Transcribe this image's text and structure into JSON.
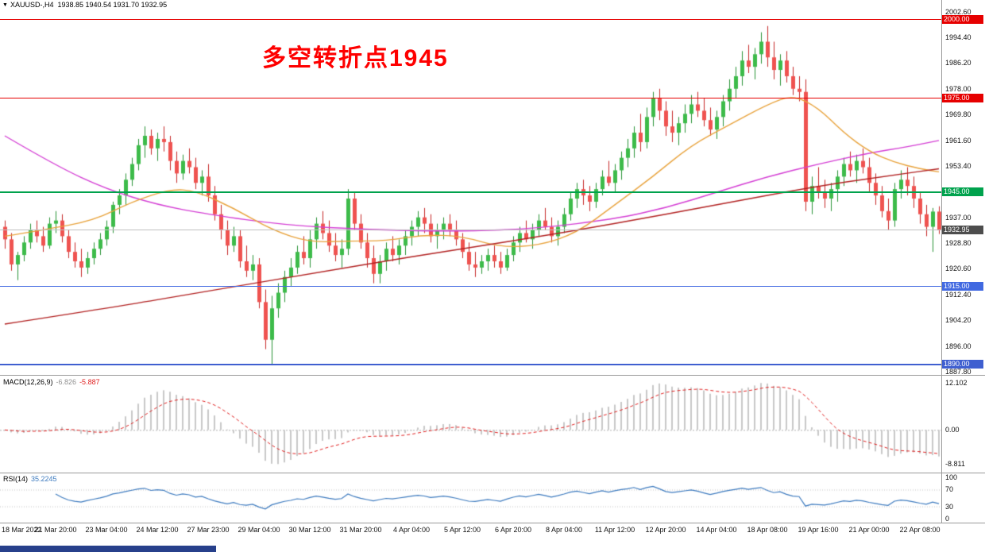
{
  "header": {
    "dropdown_icon": "▼",
    "symbol_text": "XAUUSD-,H4",
    "ohlc_text": "1938.85 1940.54 1931.70 1932.95"
  },
  "chart_data": {
    "type": "candlestick",
    "symbol": "XAUUSD-",
    "timeframe": "H4",
    "title": "XAUUSD- H4 chart with horizontal levels, MACD and RSI",
    "annotation": {
      "text": "多空转折点1945",
      "color": "#fe0000"
    },
    "price_range": [
      1887.8,
      2002.6
    ],
    "price_axis": {
      "ticks": [
        "2002.60",
        "1994.40",
        "1986.20",
        "1978.00",
        "1969.80",
        "1961.60",
        "1953.40",
        "1945.20",
        "1937.00",
        "1928.80",
        "1920.60",
        "1912.40",
        "1904.20",
        "1896.00",
        "1887.80"
      ]
    },
    "badges": [
      {
        "text": "2000.00",
        "bg": "#e60000"
      },
      {
        "text": "1975.00",
        "bg": "#e60000"
      },
      {
        "text": "1945.00",
        "bg": "#00a24d"
      },
      {
        "text": "1932.95",
        "bg": "#4d4d4d"
      },
      {
        "text": "1915.00",
        "bg": "#4169e1"
      },
      {
        "text": "1890.00",
        "bg": "#3f5fd0"
      }
    ],
    "hlines": [
      {
        "value": 2000,
        "color": "#e60000",
        "w": 1
      },
      {
        "value": 1975,
        "color": "#e60000",
        "w": 1
      },
      {
        "value": 1945,
        "color": "#00a24d",
        "w": 2
      },
      {
        "value": 1915,
        "color": "#4169e1",
        "w": 1
      },
      {
        "value": 1890,
        "color": "#3f5fd0",
        "w": 2
      },
      {
        "value": 1932.95,
        "color": "#bfbfbf",
        "w": 1
      }
    ],
    "candle_colors": {
      "up_fill": "#3dbb4a",
      "up_stroke": "#2a9337",
      "down_fill": "#ef5350",
      "down_stroke": "#c62828"
    },
    "candles": [
      [
        1934,
        1936,
        1927,
        1930
      ],
      [
        1930,
        1932,
        1920,
        1922
      ],
      [
        1922,
        1926,
        1917,
        1925
      ],
      [
        1925,
        1931,
        1923,
        1929
      ],
      [
        1929,
        1935,
        1927,
        1933
      ],
      [
        1933,
        1936,
        1929,
        1931
      ],
      [
        1931,
        1934,
        1926,
        1928
      ],
      [
        1928,
        1937,
        1927,
        1935
      ],
      [
        1935,
        1939,
        1932,
        1936
      ],
      [
        1936,
        1938,
        1929,
        1931
      ],
      [
        1931,
        1933,
        1924,
        1926
      ],
      [
        1926,
        1929,
        1921,
        1923
      ],
      [
        1923,
        1927,
        1918,
        1921
      ],
      [
        1921,
        1926,
        1919,
        1924
      ],
      [
        1924,
        1929,
        1922,
        1927
      ],
      [
        1927,
        1932,
        1925,
        1930
      ],
      [
        1930,
        1936,
        1928,
        1934
      ],
      [
        1934,
        1942,
        1932,
        1941
      ],
      [
        1941,
        1946,
        1938,
        1944
      ],
      [
        1944,
        1951,
        1941,
        1949
      ],
      [
        1949,
        1956,
        1947,
        1954
      ],
      [
        1954,
        1962,
        1952,
        1960
      ],
      [
        1960,
        1966,
        1956,
        1963
      ],
      [
        1963,
        1965,
        1957,
        1959
      ],
      [
        1959,
        1964,
        1955,
        1962
      ],
      [
        1962,
        1966,
        1958,
        1961
      ],
      [
        1961,
        1963,
        1952,
        1955
      ],
      [
        1955,
        1958,
        1948,
        1951
      ],
      [
        1951,
        1957,
        1949,
        1955
      ],
      [
        1955,
        1959,
        1951,
        1953
      ],
      [
        1953,
        1956,
        1946,
        1948
      ],
      [
        1948,
        1952,
        1944,
        1950
      ],
      [
        1950,
        1954,
        1942,
        1944
      ],
      [
        1944,
        1947,
        1936,
        1938
      ],
      [
        1938,
        1941,
        1930,
        1933
      ],
      [
        1933,
        1936,
        1925,
        1928
      ],
      [
        1928,
        1934,
        1926,
        1931
      ],
      [
        1931,
        1933,
        1921,
        1923
      ],
      [
        1923,
        1928,
        1918,
        1920
      ],
      [
        1920,
        1925,
        1917,
        1922
      ],
      [
        1922,
        1924,
        1908,
        1910
      ],
      [
        1910,
        1914,
        1895,
        1898
      ],
      [
        1898,
        1912,
        1890,
        1908
      ],
      [
        1908,
        1916,
        1905,
        1913
      ],
      [
        1913,
        1920,
        1910,
        1918
      ],
      [
        1918,
        1924,
        1915,
        1921
      ],
      [
        1921,
        1928,
        1919,
        1926
      ],
      [
        1926,
        1931,
        1922,
        1924
      ],
      [
        1924,
        1933,
        1921,
        1930
      ],
      [
        1930,
        1937,
        1927,
        1935
      ],
      [
        1935,
        1939,
        1930,
        1932
      ],
      [
        1932,
        1936,
        1926,
        1928
      ],
      [
        1928,
        1932,
        1923,
        1925
      ],
      [
        1925,
        1930,
        1921,
        1927
      ],
      [
        1927,
        1946,
        1925,
        1943
      ],
      [
        1943,
        1945,
        1933,
        1935
      ],
      [
        1935,
        1938,
        1927,
        1929
      ],
      [
        1929,
        1932,
        1921,
        1924
      ],
      [
        1924,
        1928,
        1916,
        1919
      ],
      [
        1919,
        1925,
        1916,
        1923
      ],
      [
        1923,
        1929,
        1920,
        1927
      ],
      [
        1927,
        1931,
        1923,
        1925
      ],
      [
        1925,
        1930,
        1922,
        1928
      ],
      [
        1928,
        1933,
        1925,
        1931
      ],
      [
        1931,
        1936,
        1928,
        1934
      ],
      [
        1934,
        1939,
        1931,
        1937
      ],
      [
        1937,
        1940,
        1932,
        1935
      ],
      [
        1935,
        1938,
        1929,
        1931
      ],
      [
        1931,
        1935,
        1927,
        1933
      ],
      [
        1933,
        1937,
        1930,
        1935
      ],
      [
        1935,
        1938,
        1931,
        1933
      ],
      [
        1933,
        1936,
        1928,
        1930
      ],
      [
        1930,
        1932,
        1924,
        1926
      ],
      [
        1926,
        1929,
        1920,
        1922
      ],
      [
        1922,
        1926,
        1918,
        1921
      ],
      [
        1921,
        1925,
        1919,
        1923
      ],
      [
        1923,
        1927,
        1920,
        1925
      ],
      [
        1925,
        1928,
        1921,
        1923
      ],
      [
        1923,
        1926,
        1919,
        1921
      ],
      [
        1921,
        1927,
        1920,
        1925
      ],
      [
        1925,
        1931,
        1923,
        1929
      ],
      [
        1929,
        1934,
        1926,
        1932
      ],
      [
        1932,
        1936,
        1929,
        1930
      ],
      [
        1930,
        1935,
        1927,
        1933
      ],
      [
        1933,
        1938,
        1931,
        1936
      ],
      [
        1936,
        1940,
        1933,
        1934
      ],
      [
        1934,
        1937,
        1929,
        1931
      ],
      [
        1931,
        1936,
        1928,
        1934
      ],
      [
        1934,
        1940,
        1932,
        1938
      ],
      [
        1938,
        1945,
        1936,
        1943
      ],
      [
        1943,
        1948,
        1940,
        1946
      ],
      [
        1946,
        1949,
        1941,
        1944
      ],
      [
        1944,
        1947,
        1939,
        1942
      ],
      [
        1942,
        1948,
        1940,
        1946
      ],
      [
        1946,
        1952,
        1944,
        1950
      ],
      [
        1950,
        1955,
        1947,
        1948
      ],
      [
        1948,
        1954,
        1945,
        1952
      ],
      [
        1952,
        1958,
        1949,
        1956
      ],
      [
        1956,
        1962,
        1953,
        1959
      ],
      [
        1959,
        1966,
        1956,
        1964
      ],
      [
        1964,
        1970,
        1958,
        1961
      ],
      [
        1961,
        1972,
        1959,
        1969
      ],
      [
        1969,
        1977,
        1966,
        1975
      ],
      [
        1975,
        1978,
        1968,
        1971
      ],
      [
        1971,
        1974,
        1963,
        1966
      ],
      [
        1966,
        1971,
        1961,
        1964
      ],
      [
        1964,
        1969,
        1960,
        1967
      ],
      [
        1967,
        1973,
        1964,
        1970
      ],
      [
        1970,
        1976,
        1967,
        1973
      ],
      [
        1973,
        1977,
        1969,
        1971
      ],
      [
        1971,
        1975,
        1966,
        1968
      ],
      [
        1968,
        1972,
        1963,
        1965
      ],
      [
        1965,
        1971,
        1962,
        1969
      ],
      [
        1969,
        1976,
        1966,
        1974
      ],
      [
        1974,
        1981,
        1971,
        1978
      ],
      [
        1978,
        1985,
        1975,
        1982
      ],
      [
        1982,
        1990,
        1979,
        1987
      ],
      [
        1987,
        1992,
        1983,
        1985
      ],
      [
        1985,
        1991,
        1981,
        1989
      ],
      [
        1989,
        1996,
        1986,
        1993
      ],
      [
        1993,
        1998,
        1985,
        1988
      ],
      [
        1988,
        1993,
        1981,
        1984
      ],
      [
        1984,
        1989,
        1979,
        1987
      ],
      [
        1987,
        1990,
        1980,
        1982
      ],
      [
        1982,
        1985,
        1976,
        1978
      ],
      [
        1978,
        1982,
        1974,
        1977
      ],
      [
        1977,
        1981,
        1939,
        1942
      ],
      [
        1942,
        1950,
        1938,
        1947
      ],
      [
        1947,
        1953,
        1943,
        1945
      ],
      [
        1945,
        1949,
        1940,
        1943
      ],
      [
        1943,
        1948,
        1939,
        1946
      ],
      [
        1946,
        1952,
        1942,
        1950
      ],
      [
        1950,
        1956,
        1947,
        1954
      ],
      [
        1954,
        1958,
        1950,
        1952
      ],
      [
        1952,
        1957,
        1948,
        1955
      ],
      [
        1955,
        1959,
        1951,
        1953
      ],
      [
        1953,
        1956,
        1945,
        1948
      ],
      [
        1948,
        1951,
        1941,
        1944
      ],
      [
        1944,
        1947,
        1937,
        1939
      ],
      [
        1939,
        1943,
        1933,
        1936
      ],
      [
        1936,
        1948,
        1934,
        1946
      ],
      [
        1946,
        1952,
        1943,
        1949
      ],
      [
        1949,
        1953,
        1944,
        1947
      ],
      [
        1947,
        1950,
        1940,
        1943
      ],
      [
        1943,
        1945,
        1935,
        1938
      ],
      [
        1938,
        1941,
        1931,
        1934
      ],
      [
        1934,
        1940,
        1926,
        1938.85
      ],
      [
        1938.85,
        1940.54,
        1931.7,
        1932.95
      ]
    ],
    "time_labels": [
      "18 Mar 2022",
      "21 Mar 20:00",
      "23 Mar 04:00",
      "24 Mar 12:00",
      "27 Mar 23:00",
      "29 Mar 04:00",
      "30 Mar 12:00",
      "31 Mar 20:00",
      "4 Apr 04:00",
      "5 Apr 12:00",
      "6 Apr 20:00",
      "8 Apr 04:00",
      "11 Apr 12:00",
      "12 Apr 20:00",
      "14 Apr 04:00",
      "18 Apr 08:00",
      "19 Apr 16:00",
      "21 Apr 00:00",
      "22 Apr 08:00"
    ],
    "label_step": 8,
    "ma_lines": [
      {
        "name": "ma-slow-magenta",
        "color": "#d43fd4",
        "anchors": [
          [
            0,
            1963
          ],
          [
            8,
            1953.5
          ],
          [
            16,
            1946
          ],
          [
            24,
            1941
          ],
          [
            32,
            1938
          ],
          [
            44,
            1934.5
          ],
          [
            58,
            1933
          ],
          [
            72,
            1932.5
          ],
          [
            84,
            1933.5
          ],
          [
            96,
            1936.5
          ],
          [
            104,
            1940
          ],
          [
            112,
            1945
          ],
          [
            120,
            1950
          ],
          [
            128,
            1954
          ],
          [
            136,
            1957.5
          ],
          [
            142,
            1959.5
          ],
          [
            147,
            1961.5
          ]
        ]
      },
      {
        "name": "ma-mid-orange",
        "color": "#e8a33d",
        "anchors": [
          [
            0,
            1931
          ],
          [
            6,
            1933
          ],
          [
            14,
            1936
          ],
          [
            20,
            1942
          ],
          [
            26,
            1946
          ],
          [
            30,
            1945.5
          ],
          [
            36,
            1940
          ],
          [
            42,
            1933
          ],
          [
            48,
            1929
          ],
          [
            54,
            1929.5
          ],
          [
            60,
            1929.5
          ],
          [
            66,
            1931.5
          ],
          [
            72,
            1931
          ],
          [
            78,
            1927.5
          ],
          [
            84,
            1928
          ],
          [
            90,
            1932
          ],
          [
            96,
            1941
          ],
          [
            102,
            1950
          ],
          [
            108,
            1960
          ],
          [
            114,
            1966.5
          ],
          [
            120,
            1973
          ],
          [
            124,
            1976
          ],
          [
            128,
            1972
          ],
          [
            132,
            1964
          ],
          [
            136,
            1958
          ],
          [
            140,
            1954.5
          ],
          [
            144,
            1952.5
          ],
          [
            147,
            1951.5
          ]
        ]
      },
      {
        "name": "ma-long-darkred",
        "color": "#b22222",
        "anchors": [
          [
            0,
            1903
          ],
          [
            16,
            1908
          ],
          [
            32,
            1913.5
          ],
          [
            48,
            1919
          ],
          [
            64,
            1924.5
          ],
          [
            80,
            1929.5
          ],
          [
            96,
            1935
          ],
          [
            112,
            1941
          ],
          [
            128,
            1947
          ],
          [
            140,
            1950.5
          ],
          [
            147,
            1952.5
          ]
        ]
      }
    ],
    "macd": {
      "label": "MACD(12,26,9)",
      "value_main": "-6.826",
      "value_signal": "-5.887",
      "params": [
        12,
        26,
        9
      ],
      "axis_labels": [
        "12.102",
        "0.00",
        "-8.811"
      ],
      "histogram_color": "#c8c8c8",
      "signal_color": "#e02020"
    },
    "rsi": {
      "label": "RSI(14)",
      "value": "35.2245",
      "period": 14,
      "axis_labels": [
        "100",
        "70",
        "30",
        "0"
      ],
      "levels": [
        70,
        30
      ],
      "line_color": "#3e7bbf"
    }
  },
  "taskbar_color": "#27408b"
}
